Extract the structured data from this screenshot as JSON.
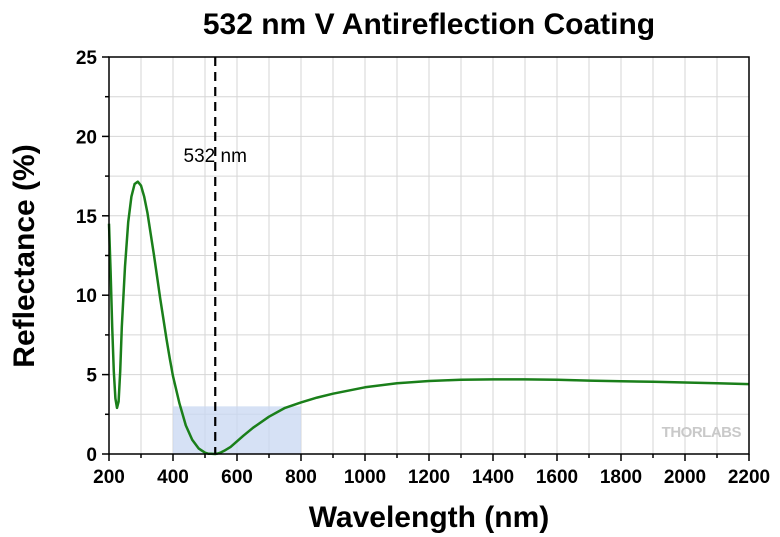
{
  "chart_data": {
    "type": "line",
    "title": "532 nm V Antireflection Coating",
    "xlabel": "Wavelength (nm)",
    "ylabel": "Reflectance (%)",
    "xlim": [
      200,
      2200
    ],
    "ylim": [
      0,
      25
    ],
    "xticks": [
      200,
      400,
      600,
      800,
      1000,
      1200,
      1400,
      1600,
      1800,
      2000,
      2200
    ],
    "yticks": [
      0,
      5,
      10,
      15,
      20,
      25
    ],
    "grid": true,
    "legend": "none",
    "series": [
      {
        "color": "#1a7f1a",
        "x": [
          200,
          205,
          210,
          215,
          220,
          225,
          230,
          235,
          240,
          250,
          260,
          270,
          280,
          290,
          300,
          310,
          320,
          330,
          340,
          350,
          360,
          370,
          380,
          390,
          400,
          420,
          440,
          460,
          480,
          500,
          510,
          520,
          532,
          540,
          550,
          560,
          580,
          600,
          620,
          650,
          700,
          750,
          800,
          850,
          900,
          1000,
          1100,
          1200,
          1300,
          1400,
          1500,
          1600,
          1700,
          1800,
          1900,
          2000,
          2100,
          2200
        ],
        "y": [
          14.5,
          11.5,
          8.0,
          5.2,
          3.5,
          2.9,
          3.3,
          5.2,
          8.0,
          11.8,
          14.6,
          16.2,
          17.0,
          17.15,
          16.9,
          16.2,
          15.2,
          13.9,
          12.6,
          11.2,
          9.8,
          8.5,
          7.2,
          6.0,
          4.9,
          3.2,
          1.8,
          0.9,
          0.35,
          0.08,
          0.02,
          0.01,
          0.0,
          0.03,
          0.1,
          0.2,
          0.45,
          0.8,
          1.15,
          1.65,
          2.35,
          2.9,
          3.25,
          3.55,
          3.8,
          4.2,
          4.45,
          4.6,
          4.68,
          4.7,
          4.7,
          4.68,
          4.62,
          4.58,
          4.55,
          4.5,
          4.45,
          4.4
        ]
      }
    ],
    "annotations": [
      {
        "type": "vline",
        "x": 532,
        "style": "dashed",
        "label": "532 nm"
      },
      {
        "type": "shaded-region",
        "x": [
          400,
          800
        ],
        "y": [
          0,
          3
        ],
        "color": "#c8d7f2"
      }
    ]
  },
  "logo_text": "THORLABS"
}
